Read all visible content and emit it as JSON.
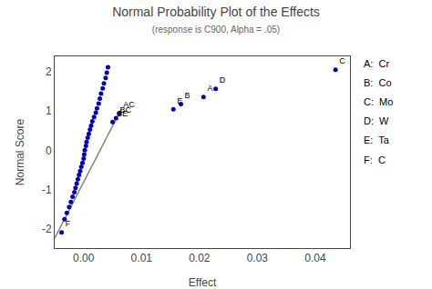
{
  "chart_data": {
    "type": "scatter",
    "title": "Normal Probability Plot of the Effects",
    "subtitle": "(response is C900, Alpha = .05)",
    "xlabel": "Effect",
    "ylabel": "Normal Score",
    "xlim": [
      -0.005,
      0.046
    ],
    "ylim": [
      -2.5,
      2.4
    ],
    "xticks": [
      {
        "value": 0.0,
        "label": "0.00"
      },
      0.01,
      0.02,
      0.03,
      0.04
    ],
    "yticks": [
      -2,
      -1,
      0,
      1,
      2
    ],
    "grid": false,
    "series": [
      {
        "type": "line",
        "color": "#888870",
        "x": [
          -0.005,
          0.0065
        ],
        "values": [
          -2.25,
          1.05
        ]
      },
      {
        "type": "scatter",
        "color": "#0000BB",
        "marker": "circle",
        "x": [
          -0.0033,
          -0.0029,
          -0.0025,
          -0.0022,
          -0.0019,
          -0.0016,
          -0.0014,
          -0.0012,
          -0.001,
          -0.0008,
          -0.0006,
          -0.0004,
          -0.0002,
          0.0,
          0.0001,
          0.0002,
          0.0004,
          0.0005,
          0.0007,
          0.0009,
          0.0011,
          0.0013,
          0.0015,
          0.0018,
          0.0021,
          0.0023,
          0.0026,
          0.0028,
          0.003,
          0.0033,
          0.0035,
          0.0038,
          0.004,
          0.0042
        ],
        "values": [
          -1.76,
          -1.6,
          -1.45,
          -1.32,
          -1.19,
          -1.07,
          -0.96,
          -0.85,
          -0.74,
          -0.63,
          -0.53,
          -0.42,
          -0.32,
          -0.21,
          -0.11,
          0.0,
          0.11,
          0.21,
          0.32,
          0.42,
          0.53,
          0.63,
          0.74,
          0.85,
          0.96,
          1.07,
          1.19,
          1.32,
          1.45,
          1.58,
          1.71,
          1.85,
          1.98,
          2.12
        ]
      },
      {
        "type": "scatter",
        "color": "#0000BB",
        "marker": "circle",
        "x": [
          0.0435,
          0.0228,
          0.0207,
          0.0168,
          0.0155,
          0.0062,
          0.0056,
          0.005,
          -0.0038
        ],
        "values": [
          2.06,
          1.57,
          1.36,
          1.18,
          1.05,
          0.94,
          0.82,
          0.72,
          -2.1
        ],
        "point_labels": [
          "C",
          "D",
          "A",
          "B",
          "E",
          "AC",
          "BC",
          "CE",
          "F"
        ]
      }
    ],
    "annotations": [
      "A:  Cr",
      "B:  Co",
      "C:  Mo",
      "D:  W",
      "E:  Ta",
      "F:  C"
    ]
  }
}
